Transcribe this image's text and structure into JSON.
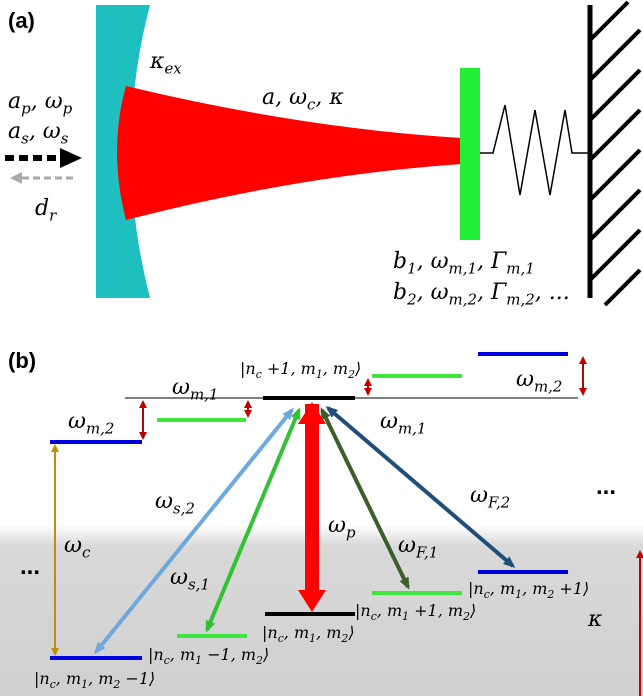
{
  "panel_a": {
    "label": "(a)",
    "kappa_ex": [
      "κ",
      {
        "sub": "ex"
      }
    ],
    "probe": [
      "a",
      {
        "sub": "p"
      },
      ", ω",
      {
        "sub": "p"
      }
    ],
    "signal": [
      "a",
      {
        "sub": "s"
      },
      ", ω",
      {
        "sub": "s"
      }
    ],
    "reflected": [
      "d",
      {
        "sub": "r"
      }
    ],
    "cavity": [
      "a, ω",
      {
        "sub": "c"
      },
      ", κ"
    ],
    "mode1": [
      "b",
      {
        "sub": "1"
      },
      ", ω",
      {
        "sub": "m,1"
      },
      ", Γ",
      {
        "sub": "m,1"
      }
    ],
    "mode2": [
      "b",
      {
        "sub": "2"
      },
      ", ω",
      {
        "sub": "m,2"
      },
      ", Γ",
      {
        "sub": "m,2"
      },
      ", ..."
    ]
  },
  "panel_b": {
    "label": "(b)",
    "top_state": [
      "|n",
      {
        "sub": "c"
      },
      " +1, m",
      {
        "sub": "1"
      },
      ", m",
      {
        "sub": "2"
      },
      "⟩"
    ],
    "wm1_right": [
      "ω",
      {
        "sub": "m,1"
      }
    ],
    "wm2_right": [
      "ω",
      {
        "sub": "m,2"
      }
    ],
    "wm1_left": [
      "ω",
      {
        "sub": "m,1"
      }
    ],
    "wm2_left": [
      "ω",
      {
        "sub": "m,2"
      }
    ],
    "wc": [
      "ω",
      {
        "sub": "c"
      }
    ],
    "ws2": [
      "ω",
      {
        "sub": "s,2"
      }
    ],
    "ws1": [
      "ω",
      {
        "sub": "s,1"
      }
    ],
    "wp": [
      "ω",
      {
        "sub": "p"
      }
    ],
    "wF1": [
      "ω",
      {
        "sub": "F,1"
      }
    ],
    "wF2": [
      "ω",
      {
        "sub": "F,2"
      }
    ],
    "dots_right": "...",
    "dots_left": "...",
    "state_m2_minus": [
      "|n",
      {
        "sub": "c"
      },
      ", m",
      {
        "sub": "1"
      },
      ", m",
      {
        "sub": "2"
      },
      " −1⟩"
    ],
    "state_m1_minus": [
      "|n",
      {
        "sub": "c"
      },
      ", m",
      {
        "sub": "1"
      },
      " −1, m",
      {
        "sub": "2"
      },
      "⟩"
    ],
    "state_ground": [
      "|n",
      {
        "sub": "c"
      },
      ", m",
      {
        "sub": "1"
      },
      ", m",
      {
        "sub": "2"
      },
      "⟩"
    ],
    "state_m1_plus": [
      "|n",
      {
        "sub": "c"
      },
      ", m",
      {
        "sub": "1"
      },
      " +1, m",
      {
        "sub": "2"
      },
      "⟩"
    ],
    "state_m2_plus": [
      "|n",
      {
        "sub": "c"
      },
      ", m",
      {
        "sub": "1"
      },
      ", m",
      {
        "sub": "2"
      },
      " +1⟩"
    ],
    "kappa": "κ"
  }
}
